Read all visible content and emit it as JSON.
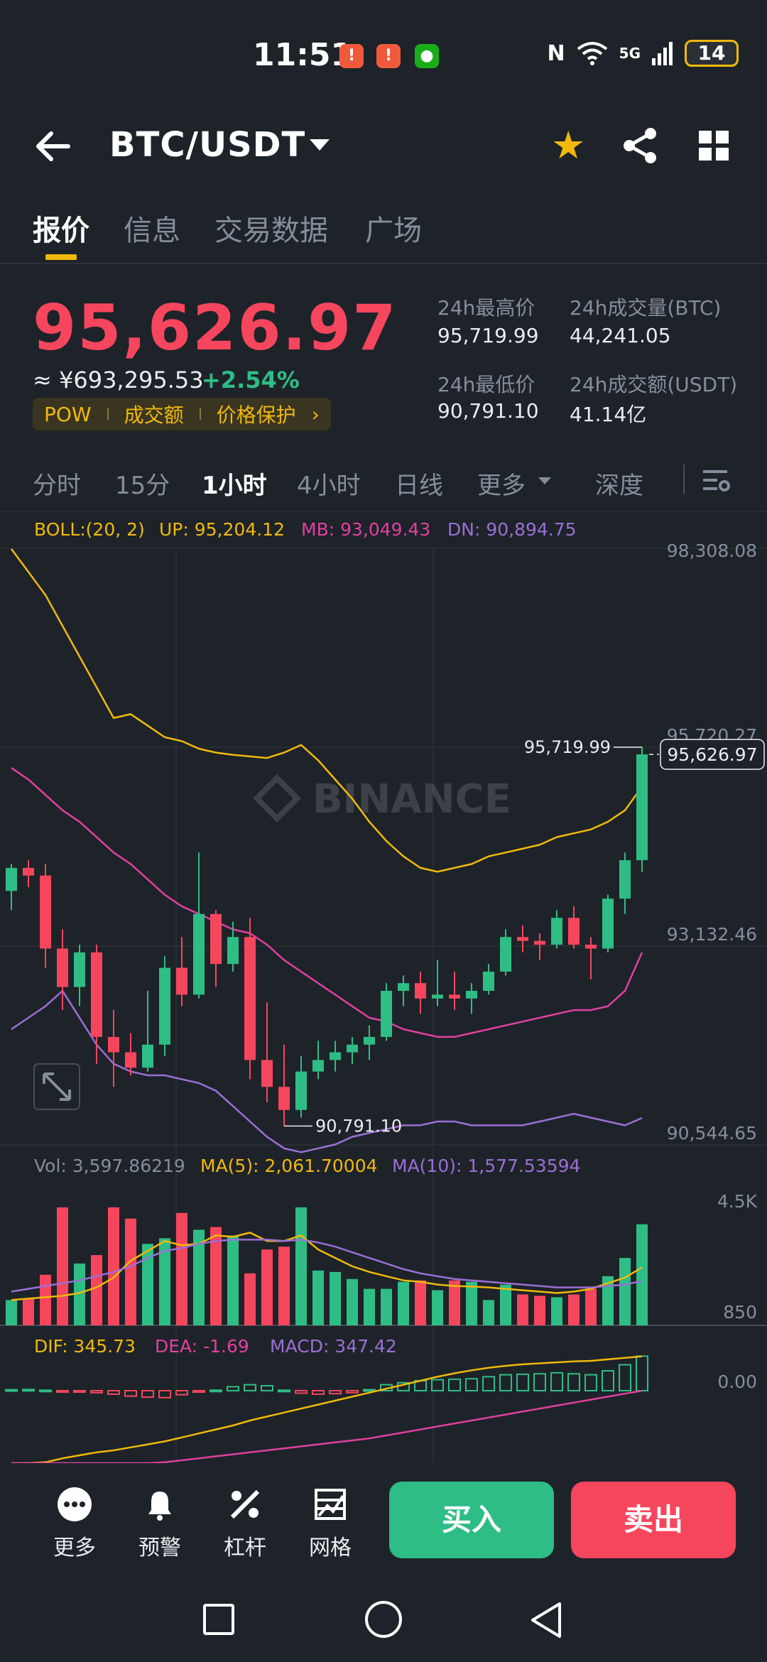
{
  "status_bar": {
    "time": "11:51",
    "network": "5G",
    "battery": "14",
    "notif_icons": [
      "notification-icon",
      "notification-icon",
      "wechat-icon"
    ]
  },
  "header": {
    "pair": "BTC/USDT",
    "icons": [
      "back-arrow-icon",
      "star-icon",
      "share-icon",
      "grid-icon"
    ]
  },
  "tabs": [
    {
      "label": "报价",
      "active": true
    },
    {
      "label": "信息",
      "active": false
    },
    {
      "label": "交易数据",
      "active": false
    },
    {
      "label": "广场",
      "active": false
    }
  ],
  "price": {
    "last": "95,626.97",
    "cny": "≈ ¥693,295.53",
    "change": "+2.54%",
    "tags": [
      "POW",
      "成交额",
      "价格保护"
    ]
  },
  "stats": {
    "high_label": "24h最高价",
    "high_value": "95,719.99",
    "vol_btc_label": "24h成交量(BTC)",
    "vol_btc_value": "44,241.05",
    "low_label": "24h最低价",
    "low_value": "90,791.10",
    "vol_usdt_label": "24h成交额(USDT)",
    "vol_usdt_value": "41.14亿"
  },
  "timeframes": [
    {
      "label": "分时",
      "active": false
    },
    {
      "label": "15分",
      "active": false
    },
    {
      "label": "1小时",
      "active": true
    },
    {
      "label": "4小时",
      "active": false
    },
    {
      "label": "日线",
      "active": false
    },
    {
      "label": "更多",
      "active": false
    },
    {
      "label": "深度",
      "active": false
    }
  ],
  "colors": {
    "up": "#2ebd85",
    "down": "#f6465d",
    "accent": "#f0b90b",
    "mb": "#e040a0",
    "dn": "#9b6fd6",
    "bg": "#1e2329"
  },
  "chart_data": {
    "type": "candlestick",
    "watermark": "BINANCE",
    "boll": {
      "label": "BOLL:(20, 2)",
      "up": "UP: 95,204.12",
      "mb": "MB: 93,049.43",
      "dn": "DN: 90,894.75"
    },
    "price_axis": [
      "98,308.08",
      "95,720.27",
      "93,132.46",
      "90,544.65"
    ],
    "ylim": [
      90544.65,
      98308.08
    ],
    "high_marker": "95,719.99",
    "low_marker": "90,791.10",
    "last_price_tag": "95,626.97",
    "candles": [
      [
        93850,
        94200,
        93600,
        94150
      ],
      [
        94150,
        94250,
        93900,
        94050
      ],
      [
        94050,
        94200,
        92850,
        93100
      ],
      [
        93100,
        93350,
        92300,
        92600
      ],
      [
        92600,
        93150,
        92350,
        93050
      ],
      [
        93050,
        93150,
        91600,
        91950
      ],
      [
        91950,
        92300,
        91300,
        91750
      ],
      [
        91750,
        92000,
        91450,
        91550
      ],
      [
        91550,
        92550,
        91500,
        91850
      ],
      [
        91850,
        93000,
        91700,
        92850
      ],
      [
        92850,
        93250,
        92350,
        92500
      ],
      [
        92500,
        94350,
        92450,
        93550
      ],
      [
        93550,
        93600,
        92600,
        92900
      ],
      [
        92900,
        93450,
        92800,
        93250
      ],
      [
        93250,
        93500,
        91400,
        91650
      ],
      [
        91650,
        92400,
        91100,
        91300
      ],
      [
        91300,
        91850,
        90791,
        91000
      ],
      [
        91000,
        91700,
        90900,
        91500
      ],
      [
        91500,
        91900,
        91400,
        91650
      ],
      [
        91650,
        91900,
        91500,
        91750
      ],
      [
        91750,
        91950,
        91600,
        91850
      ],
      [
        91850,
        92100,
        91650,
        91950
      ],
      [
        91950,
        92650,
        91900,
        92550
      ],
      [
        92550,
        92750,
        92350,
        92650
      ],
      [
        92650,
        92800,
        92250,
        92450
      ],
      [
        92450,
        92950,
        92350,
        92500
      ],
      [
        92500,
        92800,
        92300,
        92450
      ],
      [
        92450,
        92650,
        92250,
        92550
      ],
      [
        92550,
        92900,
        92500,
        92800
      ],
      [
        92800,
        93350,
        92750,
        93250
      ],
      [
        93250,
        93400,
        93050,
        93200
      ],
      [
        93200,
        93300,
        92950,
        93150
      ],
      [
        93150,
        93600,
        93100,
        93500
      ],
      [
        93500,
        93650,
        93100,
        93150
      ],
      [
        93150,
        93250,
        92700,
        93100
      ],
      [
        93100,
        93800,
        93050,
        93750
      ],
      [
        93750,
        94350,
        93550,
        94250
      ],
      [
        94250,
        95719.99,
        94100,
        95626.97
      ]
    ],
    "boll_up": [
      98300,
      98000,
      97700,
      97300,
      96900,
      96500,
      96100,
      96150,
      96000,
      95850,
      95800,
      95700,
      95650,
      95620,
      95600,
      95580,
      95650,
      95750,
      95550,
      95300,
      95050,
      94750,
      94500,
      94300,
      94150,
      94100,
      94150,
      94200,
      94300,
      94350,
      94400,
      94450,
      94550,
      94600,
      94650,
      94750,
      94900,
      95204.12
    ],
    "boll_mb": [
      95450,
      95300,
      95100,
      94900,
      94750,
      94550,
      94350,
      94200,
      94000,
      93800,
      93650,
      93550,
      93450,
      93350,
      93300,
      93150,
      92950,
      92800,
      92650,
      92500,
      92350,
      92200,
      92150,
      92050,
      92000,
      91950,
      91950,
      92000,
      92050,
      92100,
      92150,
      92200,
      92250,
      92300,
      92300,
      92350,
      92550,
      93049.43
    ],
    "boll_dn": [
      92050,
      92200,
      92350,
      92550,
      92200,
      91850,
      91600,
      91500,
      91450,
      91450,
      91400,
      91350,
      91250,
      91050,
      90850,
      90650,
      90500,
      90450,
      90500,
      90550,
      90650,
      90700,
      90750,
      90800,
      90800,
      90850,
      90850,
      90800,
      90800,
      90800,
      90800,
      90850,
      90900,
      90950,
      90900,
      90850,
      90800,
      90894.75
    ],
    "volume": {
      "label": "Vol: 3,597.86219",
      "ma5_label": "MA(5): 2,061.70004",
      "ma10_label": "MA(10): 1,577.53594",
      "axis": [
        "4.5K",
        "850"
      ],
      "values": [
        900,
        950,
        1800,
        4200,
        2200,
        2500,
        4200,
        3800,
        2900,
        3100,
        4000,
        3400,
        3500,
        3200,
        1850,
        2700,
        2800,
        4200,
        1950,
        1900,
        1650,
        1300,
        1300,
        1550,
        1600,
        1250,
        1600,
        1550,
        900,
        1450,
        1100,
        1050,
        1000,
        1100,
        1300,
        1750,
        2400,
        3597.86
      ],
      "ma5": [
        900,
        950,
        1000,
        1050,
        1150,
        1350,
        1700,
        2300,
        2650,
        3000,
        2850,
        2900,
        3200,
        3150,
        3300,
        3000,
        3000,
        3200,
        2700,
        2400,
        2100,
        1900,
        1750,
        1600,
        1550,
        1450,
        1400,
        1380,
        1350,
        1300,
        1250,
        1200,
        1150,
        1200,
        1300,
        1500,
        1700,
        2061.7
      ],
      "ma10": [
        1200,
        1300,
        1400,
        1500,
        1600,
        1750,
        1900,
        2100,
        2400,
        2650,
        2750,
        2900,
        3000,
        3050,
        3050,
        3050,
        3000,
        3050,
        2950,
        2800,
        2600,
        2400,
        2200,
        2000,
        1850,
        1750,
        1650,
        1600,
        1550,
        1500,
        1450,
        1400,
        1350,
        1350,
        1350,
        1400,
        1450,
        1577.54
      ]
    },
    "macd": {
      "dif_label": "DIF: 345.73",
      "dea_label": "DEA: -1.69",
      "macd_label": "MACD: 347.42",
      "axis": "0.00",
      "hist": [
        10,
        12,
        5,
        -15,
        -10,
        -20,
        -35,
        -55,
        -65,
        -70,
        -40,
        -15,
        5,
        40,
        60,
        50,
        5,
        -25,
        -35,
        -30,
        -20,
        10,
        60,
        80,
        100,
        110,
        115,
        120,
        140,
        160,
        165,
        170,
        180,
        170,
        160,
        200,
        260,
        347.42
      ],
      "dif": [
        -800,
        -760,
        -720,
        -680,
        -650,
        -620,
        -600,
        -570,
        -540,
        -510,
        -470,
        -430,
        -390,
        -350,
        -300,
        -260,
        -220,
        -180,
        -140,
        -100,
        -60,
        -20,
        20,
        60,
        100,
        140,
        175,
        205,
        230,
        250,
        265,
        275,
        285,
        295,
        300,
        315,
        330,
        345.73
      ],
      "dea": [
        -900,
        -880,
        -860,
        -840,
        -820,
        -800,
        -780,
        -760,
        -740,
        -720,
        -700,
        -680,
        -660,
        -640,
        -620,
        -600,
        -580,
        -560,
        -540,
        -520,
        -500,
        -480,
        -450,
        -420,
        -390,
        -360,
        -330,
        -300,
        -270,
        -240,
        -210,
        -180,
        -150,
        -120,
        -90,
        -60,
        -30,
        -1.69
      ]
    }
  },
  "bottom": {
    "more_label": "更多",
    "alert_label": "预警",
    "leverage_label": "杠杆",
    "grid_label": "网格",
    "buy_label": "买入",
    "sell_label": "卖出"
  }
}
